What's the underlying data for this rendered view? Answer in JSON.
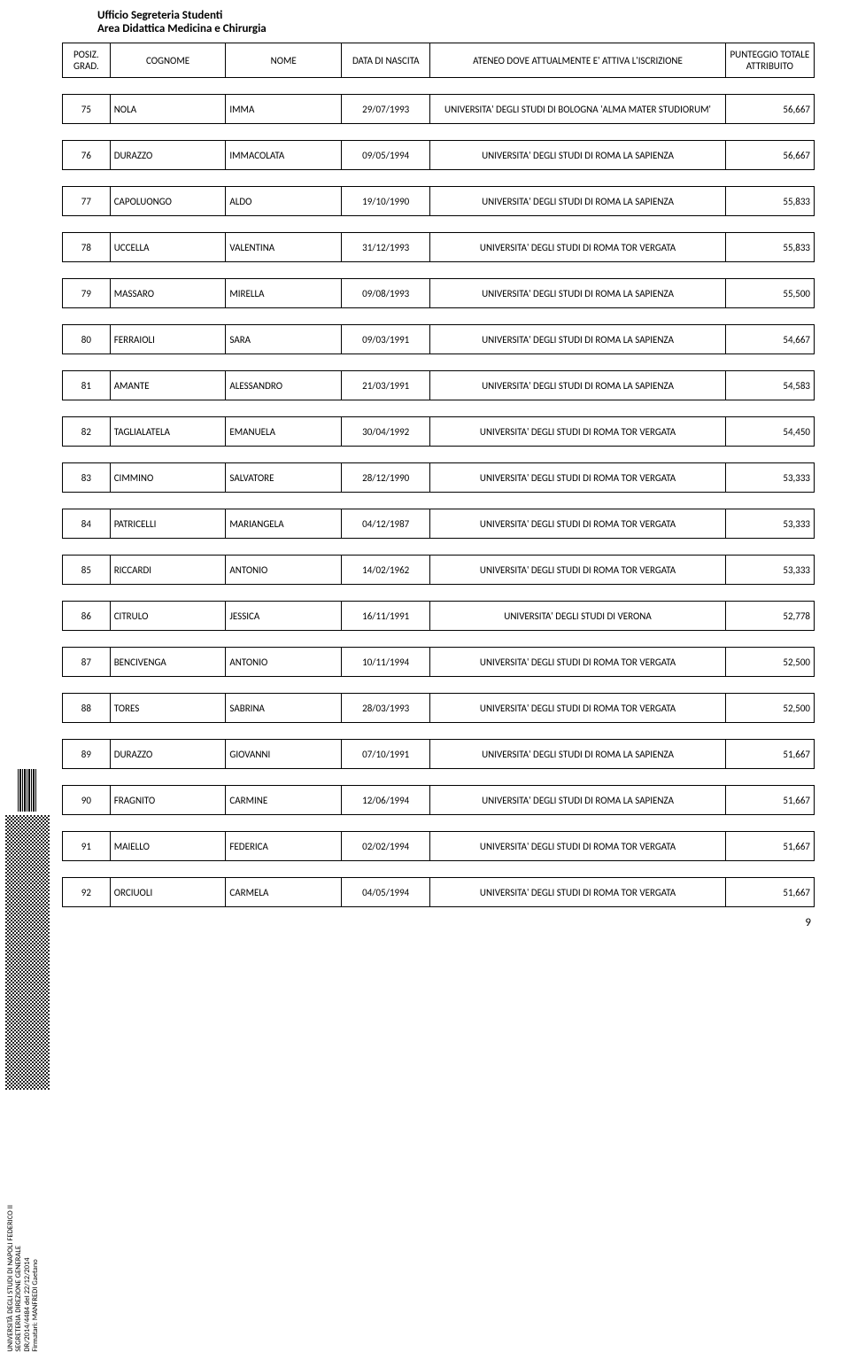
{
  "office_line1": "Ufficio Segreteria Studenti",
  "office_line2": "Area Didattica Medicina e Chirurgia",
  "side_text": "UNIVERSITÀ DEGLI STUDI DI NAPOLI FEDERICO II\nSEGRETERIA DIREZIONE GENERALE\nDR/2014/4484 del 22/12/2014\nFirmatari: MANFREDI Gaetano",
  "page_number": "9",
  "columns": {
    "pos": "POSIZ. GRAD.",
    "cognome": "COGNOME",
    "nome": "NOME",
    "data": "DATA DI NASCITA",
    "ateneo": "ATENEO DOVE ATTUALMENTE E' ATTIVA L'ISCRIZIONE",
    "punteggio": "PUNTEGGIO TOTALE ATTRIBUITO"
  },
  "rows": [
    {
      "p": "75",
      "c": "NOLA",
      "n": "IMMA",
      "d": "29/07/1993",
      "a": "UNIVERSITA' DEGLI STUDI DI BOLOGNA 'ALMA MATER STUDIORUM'",
      "s": "56,667"
    },
    {
      "p": "76",
      "c": "DURAZZO",
      "n": "IMMACOLATA",
      "d": "09/05/1994",
      "a": "UNIVERSITA' DEGLI STUDI DI ROMA  LA SAPIENZA",
      "s": "56,667"
    },
    {
      "p": "77",
      "c": "CAPOLUONGO",
      "n": "ALDO",
      "d": "19/10/1990",
      "a": "UNIVERSITA' DEGLI STUDI DI ROMA  LA SAPIENZA",
      "s": "55,833"
    },
    {
      "p": "78",
      "c": "UCCELLA",
      "n": "VALENTINA",
      "d": "31/12/1993",
      "a": "UNIVERSITA' DEGLI STUDI DI ROMA  TOR VERGATA",
      "s": "55,833"
    },
    {
      "p": "79",
      "c": "MASSARO",
      "n": "MIRELLA",
      "d": "09/08/1993",
      "a": "UNIVERSITA' DEGLI STUDI DI ROMA  LA SAPIENZA",
      "s": "55,500"
    },
    {
      "p": "80",
      "c": "FERRAIOLI",
      "n": "SARA",
      "d": "09/03/1991",
      "a": "UNIVERSITA' DEGLI STUDI DI ROMA  LA SAPIENZA",
      "s": "54,667"
    },
    {
      "p": "81",
      "c": "AMANTE",
      "n": "ALESSANDRO",
      "d": "21/03/1991",
      "a": "UNIVERSITA' DEGLI STUDI DI ROMA  LA SAPIENZA",
      "s": "54,583"
    },
    {
      "p": "82",
      "c": "TAGLIALATELA",
      "n": "EMANUELA",
      "d": "30/04/1992",
      "a": "UNIVERSITA' DEGLI STUDI DI ROMA  TOR VERGATA",
      "s": "54,450"
    },
    {
      "p": "83",
      "c": "CIMMINO",
      "n": "SALVATORE",
      "d": "28/12/1990",
      "a": "UNIVERSITA' DEGLI STUDI DI ROMA  TOR VERGATA",
      "s": "53,333"
    },
    {
      "p": "84",
      "c": "PATRICELLI",
      "n": "MARIANGELA",
      "d": "04/12/1987",
      "a": "UNIVERSITA' DEGLI STUDI DI ROMA  TOR VERGATA",
      "s": "53,333"
    },
    {
      "p": "85",
      "c": "RICCARDI",
      "n": "ANTONIO",
      "d": "14/02/1962",
      "a": "UNIVERSITA' DEGLI STUDI DI ROMA  TOR VERGATA",
      "s": "53,333"
    },
    {
      "p": "86",
      "c": "CITRULO",
      "n": "JESSICA",
      "d": "16/11/1991",
      "a": "UNIVERSITA' DEGLI STUDI DI VERONA",
      "s": "52,778"
    },
    {
      "p": "87",
      "c": "BENCIVENGA",
      "n": "ANTONIO",
      "d": "10/11/1994",
      "a": "UNIVERSITA' DEGLI STUDI DI ROMA  TOR VERGATA",
      "s": "52,500"
    },
    {
      "p": "88",
      "c": "TORES",
      "n": "SABRINA",
      "d": "28/03/1993",
      "a": "UNIVERSITA' DEGLI STUDI DI ROMA  TOR VERGATA",
      "s": "52,500"
    },
    {
      "p": "89",
      "c": "DURAZZO",
      "n": "GIOVANNI",
      "d": "07/10/1991",
      "a": "UNIVERSITA' DEGLI STUDI DI ROMA  LA SAPIENZA",
      "s": "51,667"
    },
    {
      "p": "90",
      "c": "FRAGNITO",
      "n": "CARMINE",
      "d": "12/06/1994",
      "a": "UNIVERSITA' DEGLI STUDI DI ROMA  LA SAPIENZA",
      "s": "51,667"
    },
    {
      "p": "91",
      "c": "MAIELLO",
      "n": "FEDERICA",
      "d": "02/02/1994",
      "a": "UNIVERSITA' DEGLI STUDI DI ROMA  TOR VERGATA",
      "s": "51,667"
    },
    {
      "p": "92",
      "c": "ORCIUOLI",
      "n": "CARMELA",
      "d": "04/05/1994",
      "a": "UNIVERSITA' DEGLI STUDI DI ROMA  TOR VERGATA",
      "s": "51,667"
    }
  ]
}
